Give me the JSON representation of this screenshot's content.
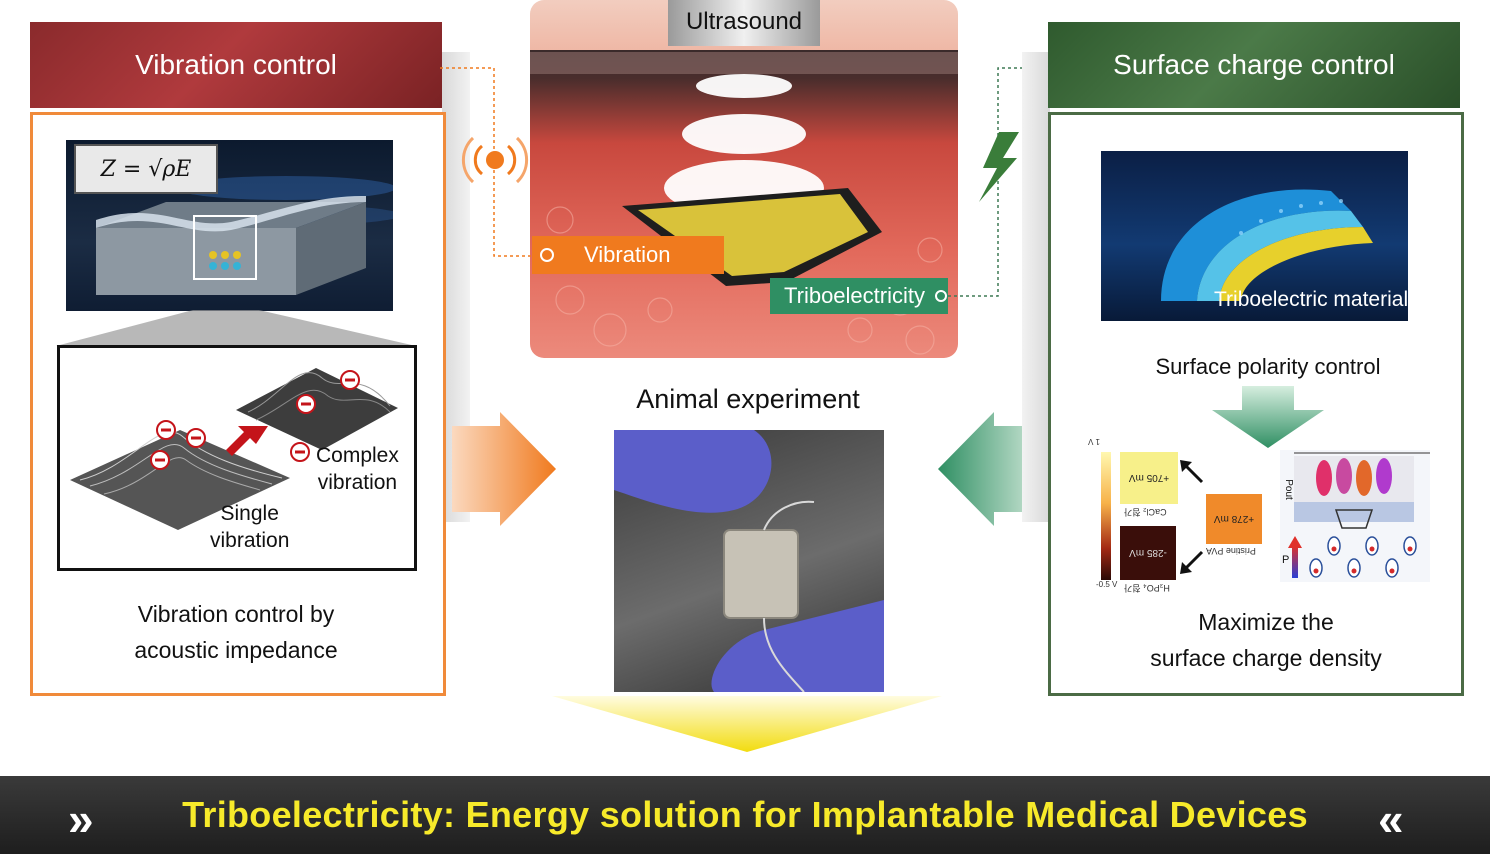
{
  "left_panel": {
    "header": "Vibration control",
    "formula": "Z = √ρE",
    "label_complex_1": "Complex",
    "label_complex_2": "vibration",
    "label_single_1": "Single",
    "label_single_2": "vibration",
    "caption_1": "Vibration control by",
    "caption_2": "acoustic impedance"
  },
  "center_panel": {
    "ultrasound_label": "Ultrasound",
    "vibration_tag": "Vibration",
    "triboelectricity_tag": "Triboelectricity",
    "animal_title": "Animal experiment"
  },
  "right_panel": {
    "header": "Surface charge control",
    "material_label": "Triboelectric material",
    "polarity_label": "Surface polarity control",
    "caption_1": "Maximize the",
    "caption_2": "surface charge density",
    "heat_top": "+705 mV",
    "heat_mid": "+278 mV",
    "heat_bot": "-285 mV",
    "label_cacl": "CaCl₂ 첨가",
    "label_pristine": "Pristine PVA",
    "label_h3po4": "H₃PO₄ 첨가",
    "scale_top": "1 V",
    "scale_bot": "-0.5 V",
    "label_p": "P",
    "label_pout": "Pout"
  },
  "bottom_banner": {
    "title": "Triboelectricity: Energy solution for Implantable Medical Devices",
    "left_chevron": "»",
    "right_chevron": "«"
  },
  "colors": {
    "left_accent": "#f08a3a",
    "left_header": "#a33437",
    "right_accent": "#4b6b45",
    "right_header": "#3f6b3c",
    "vibration_tag": "#f07a1e",
    "tribo_tag": "#2f8f63",
    "banner_text": "#f7ea2a"
  }
}
